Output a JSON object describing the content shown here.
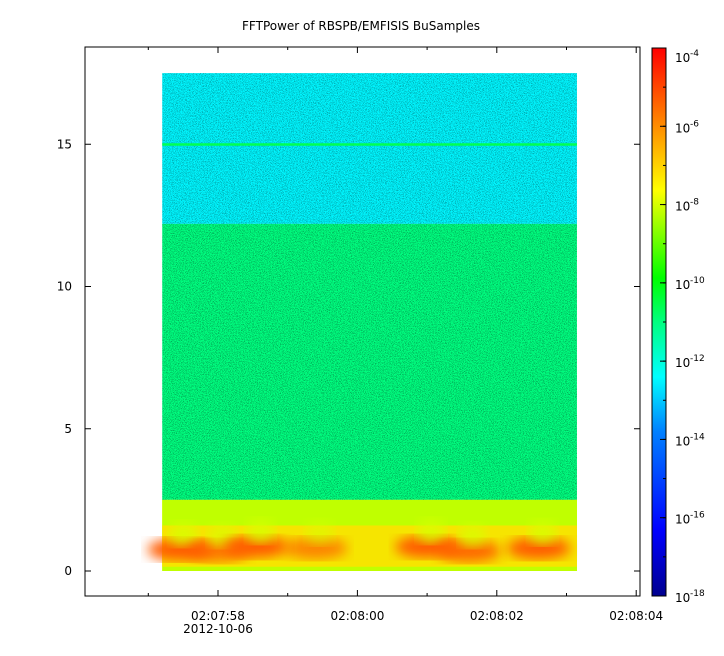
{
  "chart_data": {
    "type": "heatmap",
    "title": "FFTPower of RBSPB/EMFISIS  BuSamples",
    "xlabel": "",
    "ylabel": "",
    "x_ticks": [
      {
        "value": "02:07:58",
        "sub": "2012-10-06"
      },
      {
        "value": "02:08:00",
        "sub": ""
      },
      {
        "value": "02:08:02",
        "sub": ""
      },
      {
        "value": "02:08:04",
        "sub": ""
      }
    ],
    "y_ticks": [
      0,
      5,
      10,
      15
    ],
    "ylim": [
      -1,
      18.5
    ],
    "xlim_seconds": [
      -2.0,
      6.3
    ],
    "data_extent": {
      "x_start_s": -0.8,
      "x_end_s": 5.15,
      "y_min": 0,
      "y_max": 17.5
    },
    "line_feature": {
      "y": 15,
      "description": "narrow horizontal line"
    },
    "regions": [
      {
        "y_from": 12.2,
        "y_to": 17.5,
        "power_exponent": -12.5
      },
      {
        "y_from": 2.5,
        "y_to": 12.2,
        "power_exponent": -11
      },
      {
        "y_from": 0,
        "y_to": 2.5,
        "power_exponent": -8
      }
    ],
    "bursts": [
      {
        "t": -0.55,
        "y": 0.75,
        "intensity": 1.0
      },
      {
        "t": 0.0,
        "y": 0.7,
        "intensity": 0.8
      },
      {
        "t": 0.55,
        "y": 0.85,
        "intensity": 1.0
      },
      {
        "t": 1.4,
        "y": 0.8,
        "intensity": 0.7
      },
      {
        "t": 3.0,
        "y": 0.85,
        "intensity": 1.0
      },
      {
        "t": 3.6,
        "y": 0.7,
        "intensity": 0.9
      },
      {
        "t": 4.6,
        "y": 0.8,
        "intensity": 1.0
      }
    ],
    "colorbar": {
      "scale": "log",
      "ticks": [
        {
          "base": "10",
          "exp": "-4"
        },
        {
          "base": "10",
          "exp": "-6"
        },
        {
          "base": "10",
          "exp": "-8"
        },
        {
          "base": "10",
          "exp": "-10"
        },
        {
          "base": "10",
          "exp": "-12"
        },
        {
          "base": "10",
          "exp": "-14"
        },
        {
          "base": "10",
          "exp": "-16"
        },
        {
          "base": "10",
          "exp": "-18"
        }
      ],
      "range_exponent": [
        -18,
        -4
      ],
      "colors": [
        "#00008f",
        "#0000ff",
        "#0080ff",
        "#00ffff",
        "#00ff80",
        "#00ff00",
        "#80ff00",
        "#ffff00",
        "#ff8000",
        "#ff0000"
      ]
    }
  }
}
